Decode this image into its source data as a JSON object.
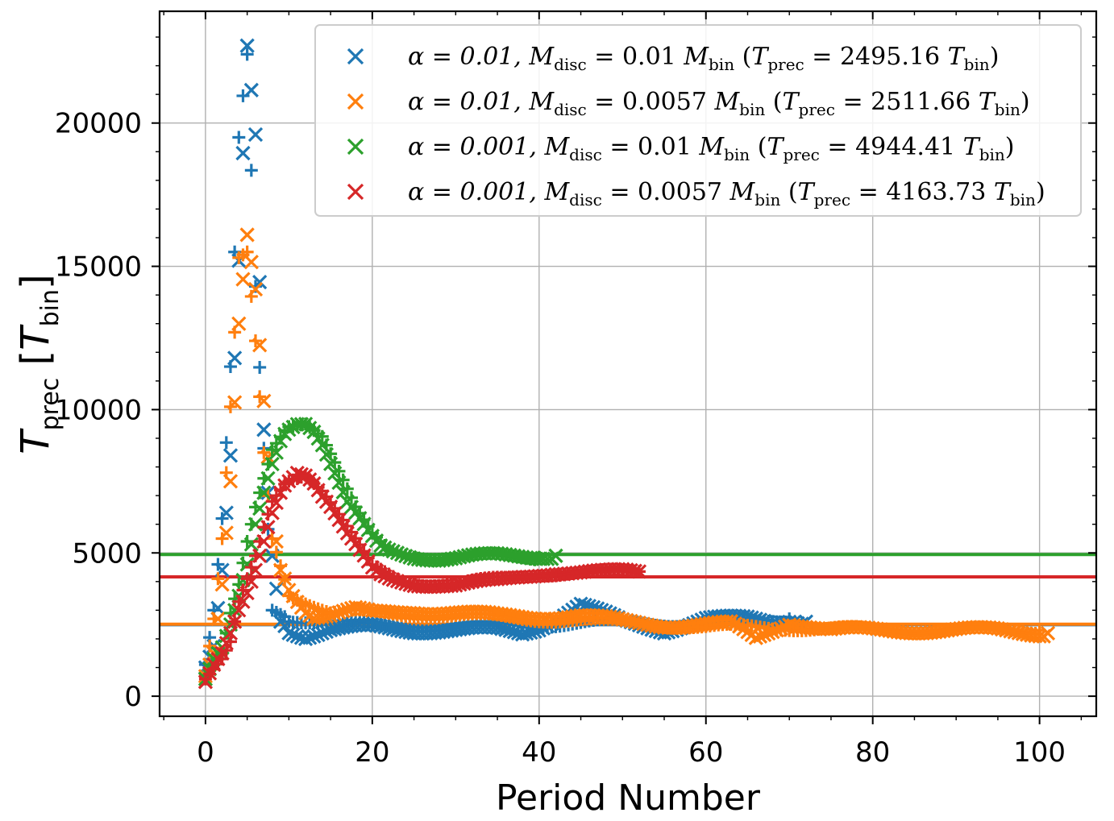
{
  "chart_data": {
    "type": "scatter",
    "title": "",
    "xlabel": "Period Number",
    "ylabel": "T_prec [T_bin]",
    "xlim": [
      -5.5,
      106.8
    ],
    "ylim": [
      -700,
      23900
    ],
    "xticks": [
      0,
      20,
      40,
      60,
      80,
      100
    ],
    "yticks": [
      0,
      5000,
      10000,
      15000,
      20000
    ],
    "grid": true,
    "legend_position": "top-right",
    "markers": "x = odd period, + = even period",
    "series": [
      {
        "name": "α = 0.01, M_disc = 0.01 M_bin (T_prec = 2495.16 T_bin)",
        "color": "#1f77b4",
        "hline": 2495.16,
        "points": [
          [
            0,
            1000
          ],
          [
            1,
            1750
          ],
          [
            2,
            4400
          ],
          [
            3,
            8400
          ],
          [
            4,
            15200
          ],
          [
            5,
            22700
          ],
          [
            6,
            19600
          ],
          [
            7,
            9300
          ],
          [
            8,
            4900
          ],
          [
            9,
            2600
          ],
          [
            10,
            2300
          ],
          [
            12,
            2100
          ],
          [
            15,
            2300
          ],
          [
            20,
            2400
          ],
          [
            25,
            2300
          ],
          [
            30,
            2300
          ],
          [
            35,
            2300
          ],
          [
            38,
            2200
          ],
          [
            40,
            2400
          ],
          [
            45,
            3200
          ],
          [
            50,
            2600
          ],
          [
            55,
            2300
          ],
          [
            60,
            2700
          ],
          [
            65,
            2700
          ],
          [
            68,
            2600
          ],
          [
            70,
            2700
          ],
          [
            72,
            2600
          ]
        ],
        "points_plus": [
          [
            0,
            1100
          ],
          [
            1,
            3000
          ],
          [
            2,
            6200
          ],
          [
            3,
            11500
          ],
          [
            4,
            19500
          ],
          [
            5,
            22400
          ],
          [
            6,
            14300
          ],
          [
            8,
            3000
          ],
          [
            10,
            2700
          ],
          [
            15,
            2600
          ],
          [
            20,
            2500
          ],
          [
            30,
            2500
          ],
          [
            40,
            2500
          ],
          [
            50,
            2600
          ],
          [
            60,
            2500
          ],
          [
            70,
            2700
          ]
        ]
      },
      {
        "name": "α = 0.01, M_disc = 0.0057 M_bin (T_prec = 2511.66 T_bin)",
        "color": "#ff7f0e",
        "hline": 2511.66,
        "points": [
          [
            0,
            700
          ],
          [
            1,
            1500
          ],
          [
            2,
            3900
          ],
          [
            3,
            7500
          ],
          [
            4,
            13000
          ],
          [
            5,
            16100
          ],
          [
            6,
            14200
          ],
          [
            7,
            10300
          ],
          [
            8,
            6400
          ],
          [
            9,
            4400
          ],
          [
            10,
            3800
          ],
          [
            11,
            3400
          ],
          [
            12,
            3000
          ],
          [
            13,
            2800
          ],
          [
            15,
            2800
          ],
          [
            18,
            3000
          ],
          [
            20,
            2900
          ],
          [
            25,
            3000
          ],
          [
            30,
            2900
          ],
          [
            35,
            2800
          ],
          [
            40,
            2800
          ],
          [
            45,
            2800
          ],
          [
            50,
            2600
          ],
          [
            55,
            2500
          ],
          [
            60,
            2500
          ],
          [
            63,
            2500
          ],
          [
            66,
            2000
          ],
          [
            68,
            2300
          ],
          [
            70,
            2600
          ],
          [
            72,
            2500
          ],
          [
            75,
            2300
          ],
          [
            80,
            2300
          ],
          [
            85,
            2300
          ],
          [
            90,
            2300
          ],
          [
            95,
            2300
          ],
          [
            100,
            2200
          ],
          [
            101,
            2200
          ]
        ],
        "points_plus": [
          [
            0,
            800
          ],
          [
            1,
            2700
          ],
          [
            2,
            5500
          ],
          [
            3,
            10100
          ],
          [
            4,
            15300
          ],
          [
            5,
            15500
          ],
          [
            6,
            12400
          ],
          [
            7,
            8500
          ],
          [
            8,
            5500
          ],
          [
            10,
            3600
          ],
          [
            15,
            2900
          ],
          [
            20,
            2900
          ],
          [
            30,
            2800
          ],
          [
            40,
            2700
          ],
          [
            50,
            2600
          ],
          [
            60,
            2400
          ],
          [
            70,
            2400
          ],
          [
            80,
            2300
          ],
          [
            90,
            2300
          ],
          [
            100,
            2300
          ]
        ]
      },
      {
        "name": "α = 0.001, M_disc = 0.01 M_bin (T_prec = 4944.41 T_bin)",
        "color": "#2ca02c",
        "hline": 4944.41,
        "points": [
          [
            0,
            600
          ],
          [
            1,
            1300
          ],
          [
            2,
            1700
          ],
          [
            3,
            2500
          ],
          [
            4,
            3500
          ],
          [
            5,
            4600
          ],
          [
            6,
            6000
          ],
          [
            7,
            7100
          ],
          [
            8,
            8100
          ],
          [
            9,
            8900
          ],
          [
            10,
            9400
          ],
          [
            11,
            9600
          ],
          [
            12,
            9600
          ],
          [
            13,
            9300
          ],
          [
            14,
            8800
          ],
          [
            15,
            8100
          ],
          [
            16,
            7400
          ],
          [
            17,
            6700
          ],
          [
            18,
            6300
          ],
          [
            19,
            5900
          ],
          [
            20,
            5500
          ],
          [
            21,
            5200
          ],
          [
            22,
            5100
          ],
          [
            25,
            4900
          ],
          [
            28,
            4800
          ],
          [
            30,
            4800
          ],
          [
            32,
            4850
          ],
          [
            35,
            4900
          ],
          [
            38,
            4900
          ],
          [
            40,
            4900
          ],
          [
            42,
            4900
          ]
        ],
        "points_plus": [
          [
            0,
            700
          ],
          [
            2,
            1500
          ],
          [
            3,
            2900
          ],
          [
            4,
            3900
          ],
          [
            5,
            5400
          ],
          [
            6,
            6600
          ],
          [
            7,
            7600
          ],
          [
            8,
            8600
          ],
          [
            10,
            9500
          ],
          [
            12,
            9600
          ],
          [
            14,
            9100
          ],
          [
            16,
            7800
          ],
          [
            18,
            6500
          ],
          [
            20,
            5600
          ],
          [
            22,
            5100
          ],
          [
            26,
            4900
          ],
          [
            30,
            4800
          ],
          [
            35,
            4900
          ],
          [
            40,
            4850
          ]
        ]
      },
      {
        "name": "α = 0.001, M_disc = 0.0057 M_bin (T_prec = 4163.73 T_bin)",
        "color": "#d62728",
        "hline": 4163.73,
        "points": [
          [
            0,
            500
          ],
          [
            1,
            1100
          ],
          [
            2,
            1500
          ],
          [
            3,
            2200
          ],
          [
            4,
            3000
          ],
          [
            5,
            3600
          ],
          [
            6,
            4400
          ],
          [
            7,
            5400
          ],
          [
            8,
            6400
          ],
          [
            9,
            7100
          ],
          [
            10,
            7600
          ],
          [
            11,
            7900
          ],
          [
            12,
            7800
          ],
          [
            13,
            7500
          ],
          [
            14,
            7000
          ],
          [
            15,
            6600
          ],
          [
            16,
            6100
          ],
          [
            17,
            5600
          ],
          [
            18,
            5200
          ],
          [
            19,
            4800
          ],
          [
            20,
            4400
          ],
          [
            21,
            4200
          ],
          [
            22,
            4100
          ],
          [
            25,
            3950
          ],
          [
            28,
            3900
          ],
          [
            30,
            3850
          ],
          [
            32,
            3900
          ],
          [
            35,
            4000
          ],
          [
            38,
            4200
          ],
          [
            40,
            4300
          ],
          [
            42,
            4350
          ],
          [
            45,
            4300
          ],
          [
            48,
            4300
          ],
          [
            50,
            4350
          ],
          [
            52,
            4350
          ]
        ],
        "points_plus": [
          [
            0,
            600
          ],
          [
            2,
            1300
          ],
          [
            3,
            1900
          ],
          [
            4,
            3300
          ],
          [
            5,
            4100
          ],
          [
            6,
            4900
          ],
          [
            7,
            5900
          ],
          [
            8,
            6800
          ],
          [
            10,
            7600
          ],
          [
            12,
            7800
          ],
          [
            14,
            7200
          ],
          [
            16,
            6300
          ],
          [
            18,
            5400
          ],
          [
            20,
            4500
          ],
          [
            24,
            4000
          ],
          [
            30,
            3900
          ],
          [
            36,
            4100
          ],
          [
            40,
            4300
          ],
          [
            46,
            4300
          ],
          [
            52,
            4350
          ]
        ]
      }
    ],
    "legend": [
      {
        "alpha": "α = 0.01,",
        "mdisc": "M",
        "mdisc_sub": "disc",
        "mdisc_val": "= 0.01",
        "mbin": "M",
        "mbin_sub": "bin",
        "tprec": "T",
        "tprec_sub": "prec",
        "tprec_val": "= 2495.16",
        "tbin": "T",
        "tbin_sub": "bin"
      },
      {
        "alpha": "α = 0.01,",
        "mdisc": "M",
        "mdisc_sub": "disc",
        "mdisc_val": "= 0.0057",
        "mbin": "M",
        "mbin_sub": "bin",
        "tprec": "T",
        "tprec_sub": "prec",
        "tprec_val": "= 2511.66",
        "tbin": "T",
        "tbin_sub": "bin"
      },
      {
        "alpha": "α = 0.001,",
        "mdisc": "M",
        "mdisc_sub": "disc",
        "mdisc_val": "= 0.01",
        "mbin": "M",
        "mbin_sub": "bin",
        "tprec": "T",
        "tprec_sub": "prec",
        "tprec_val": "= 4944.41",
        "tbin": "T",
        "tbin_sub": "bin"
      },
      {
        "alpha": "α = 0.001,",
        "mdisc": "M",
        "mdisc_sub": "disc",
        "mdisc_val": "= 0.0057",
        "mbin": "M",
        "mbin_sub": "bin",
        "tprec": "T",
        "tprec_sub": "prec",
        "tprec_val": "= 4163.73",
        "tbin": "T",
        "tbin_sub": "bin"
      }
    ],
    "ylabel_parts": {
      "main": "T",
      "sub": "prec",
      "unit_main": "T",
      "unit_sub": "bin"
    }
  }
}
